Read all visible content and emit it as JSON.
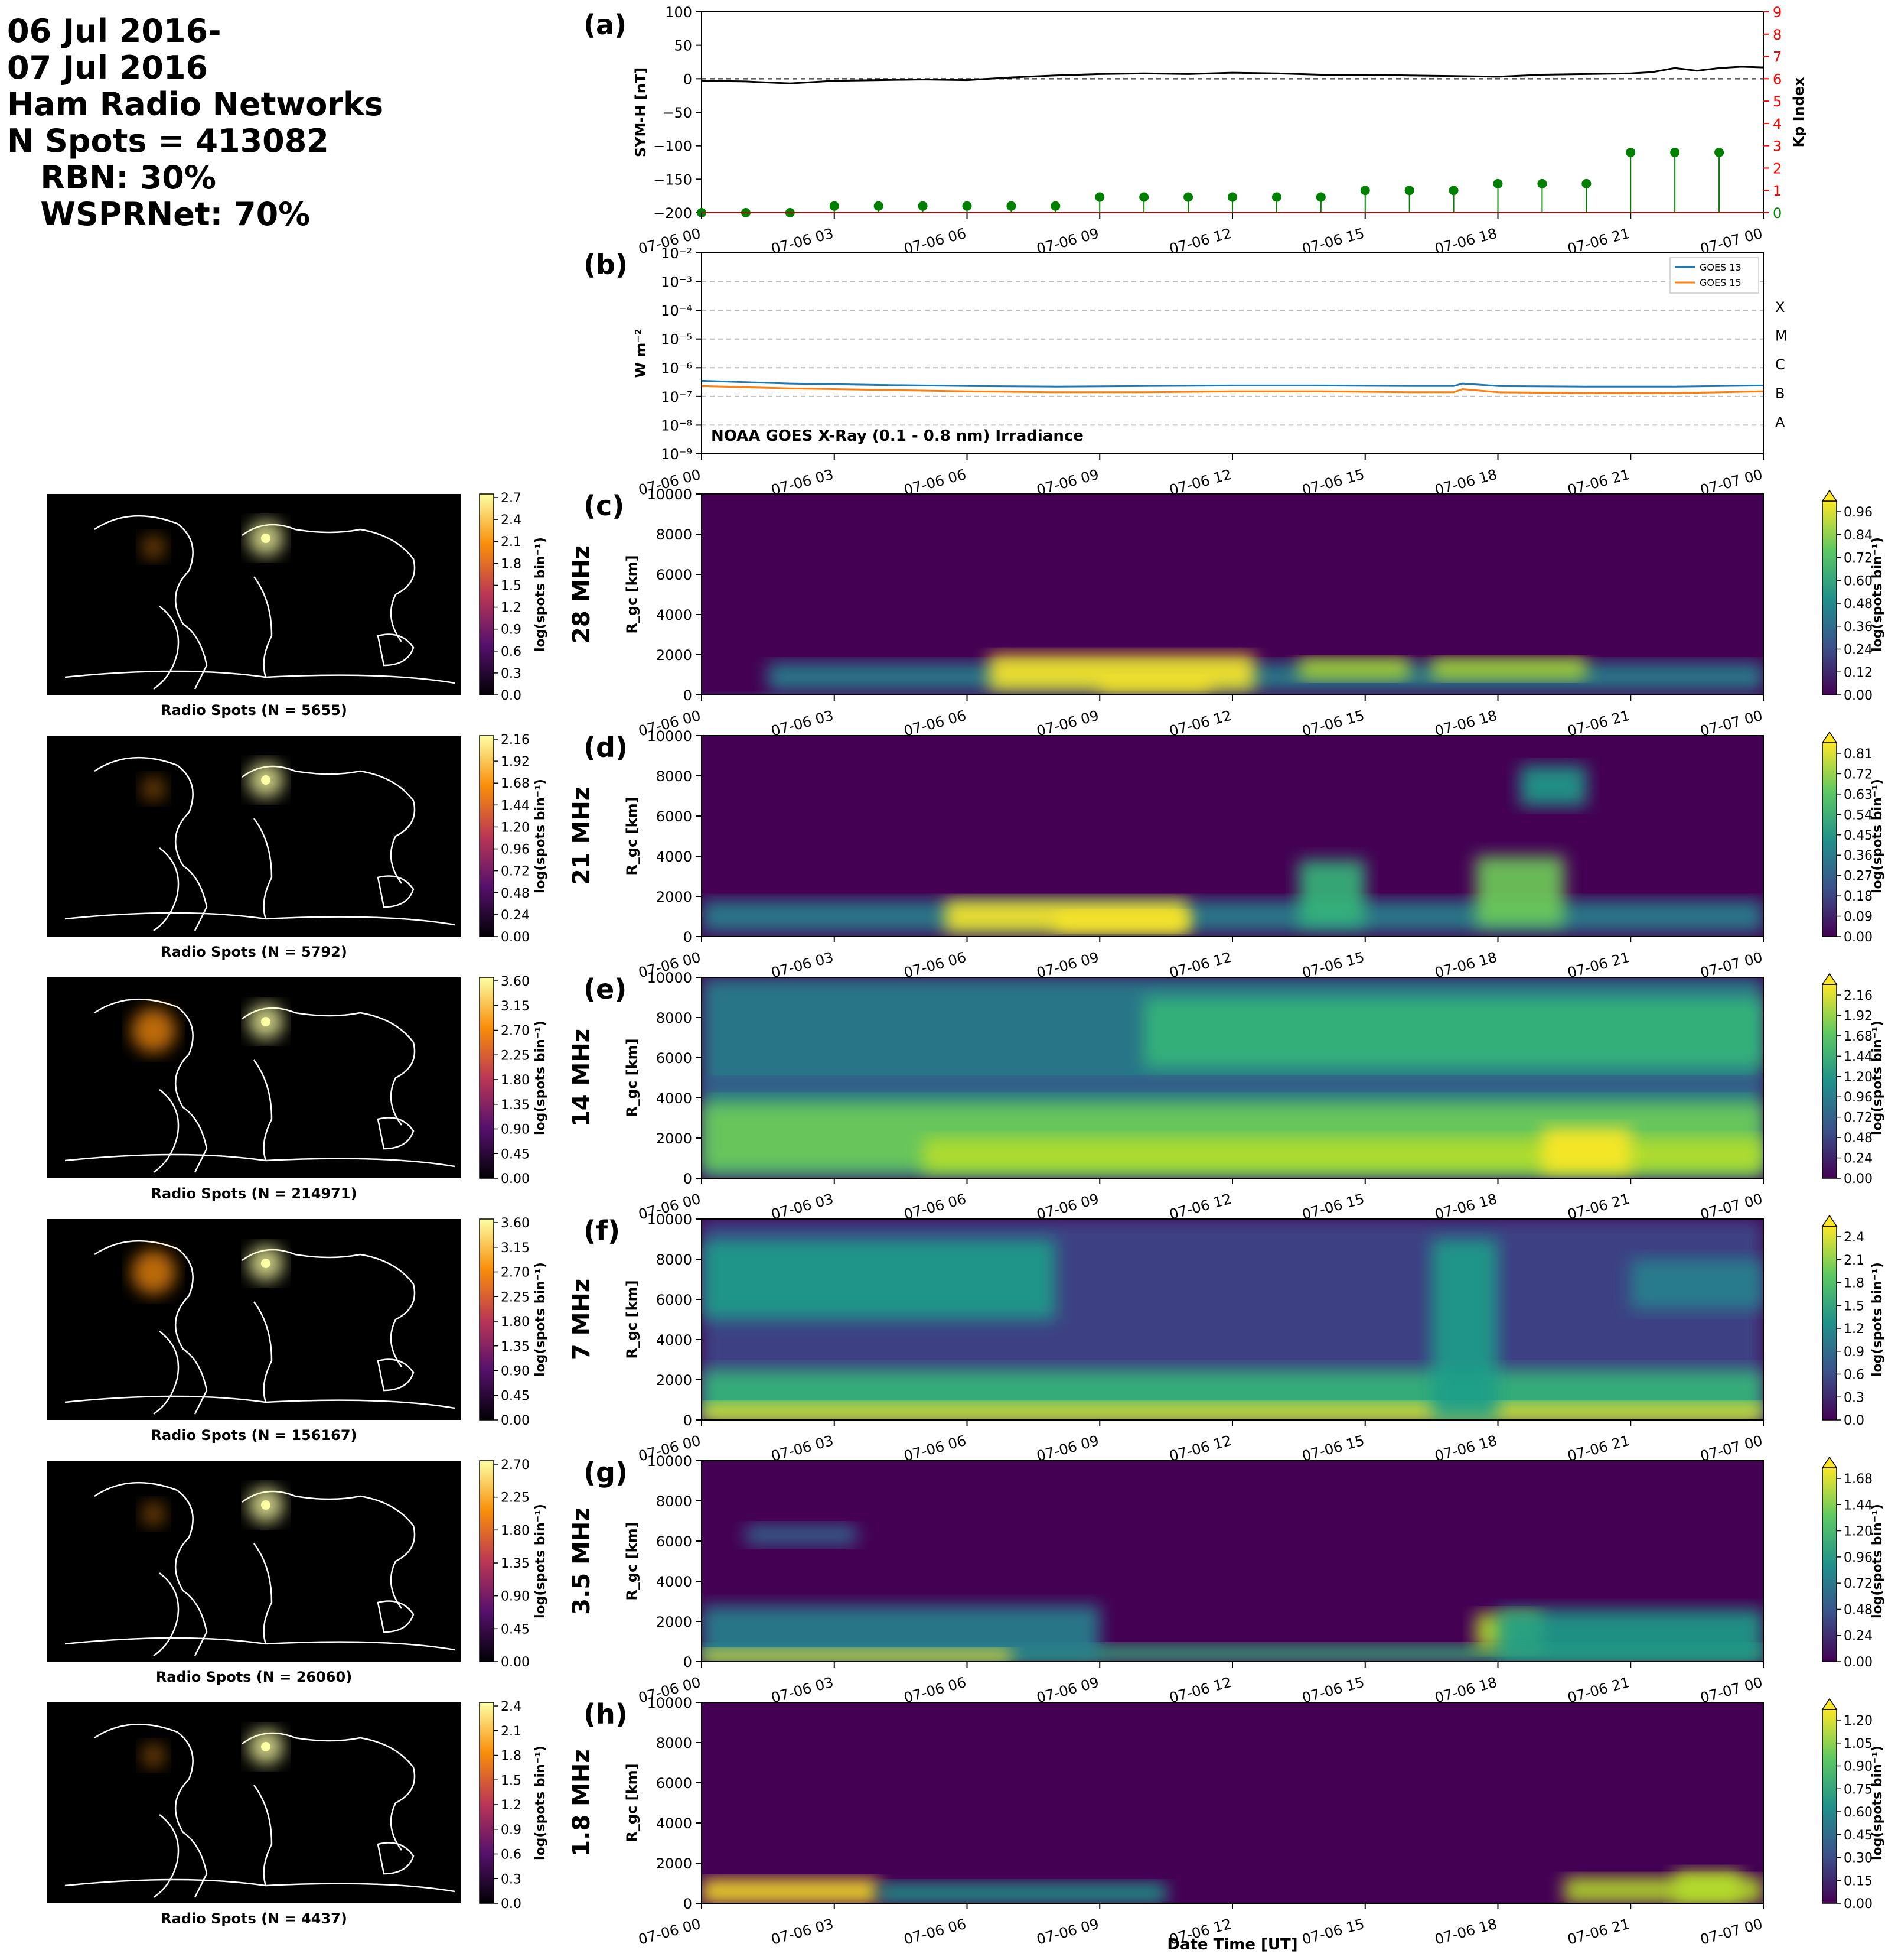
{
  "header": {
    "lines": [
      "06 Jul 2016-",
      "07 Jul 2016",
      "Ham Radio Networks",
      "N Spots = 413082",
      "   RBN: 30%",
      "   WSPRNet: 70%"
    ]
  },
  "time_ticks": [
    "07-06 00",
    "07-06 03",
    "07-06 06",
    "07-06 09",
    "07-06 12",
    "07-06 15",
    "07-06 18",
    "07-06 21",
    "07-07 00"
  ],
  "colors": {
    "symh": "#000000",
    "kp": "#008000",
    "kp_axis": "#ff0000",
    "goes13": "#1f77b4",
    "goes15": "#ff7f0e",
    "map_bg": "#000000",
    "coast": "#ffffff"
  },
  "chart_data": [
    {
      "type": "line",
      "panel": "(a)",
      "x_range_hours": [
        0,
        24
      ],
      "ylabel": "SYM-H [nT]",
      "ylim": [
        -200,
        100
      ],
      "yticks": [
        "100",
        "50",
        "0",
        "−50",
        "−100",
        "−150",
        "−200"
      ],
      "y2label": "Kp Index",
      "y2lim": [
        0,
        9
      ],
      "y2ticks": [
        "9",
        "8",
        "7",
        "6",
        "5",
        "4",
        "3",
        "2",
        "1",
        "0"
      ],
      "series": [
        {
          "kind": "line",
          "x_hours": [
            0,
            1,
            2,
            3,
            4,
            5,
            6,
            7,
            8,
            9,
            10,
            11,
            12,
            13,
            14,
            15,
            16,
            17,
            18,
            19,
            20,
            21,
            21.5,
            22,
            22.5,
            23,
            23.5,
            24
          ],
          "values": [
            -3,
            -4,
            -7,
            -3,
            -2,
            -1,
            -2,
            2,
            5,
            7,
            8,
            7,
            9,
            8,
            6,
            6,
            5,
            4,
            3,
            6,
            7,
            8,
            10,
            16,
            12,
            16,
            18,
            17
          ]
        },
        {
          "kind": "stem",
          "x_hours": [
            0,
            1,
            2,
            3,
            4,
            5,
            6,
            7,
            8,
            9,
            10,
            11,
            12,
            13,
            14,
            15,
            16,
            17,
            18,
            19,
            20,
            21,
            22,
            23
          ],
          "values": [
            0,
            0,
            0,
            0.3,
            0.3,
            0.3,
            0.3,
            0.3,
            0.3,
            0.7,
            0.7,
            0.7,
            0.7,
            0.7,
            0.7,
            1,
            1,
            1,
            1.3,
            1.3,
            1.3,
            2.7,
            2.7,
            2.7
          ]
        }
      ]
    },
    {
      "type": "line",
      "panel": "(b)",
      "x_range_hours": [
        0,
        24
      ],
      "ylabel": "W m⁻²",
      "log_scale": true,
      "ylim": [
        1e-09,
        0.01
      ],
      "yticks": [
        "10⁻²",
        "10⁻³",
        "10⁻⁴",
        "10⁻⁵",
        "10⁻⁶",
        "10⁻⁷",
        "10⁻⁸",
        "10⁻⁹"
      ],
      "flare_classes": [
        "X",
        "M",
        "C",
        "B",
        "A"
      ],
      "annotation": "NOAA GOES X-Ray (0.1 - 0.8 nm) Irradiance",
      "grid": true,
      "legend_position": "top-right",
      "series": [
        {
          "name": "GOES 13",
          "x_hours": [
            0,
            2,
            4,
            6,
            8,
            10,
            12,
            14,
            16,
            17,
            17.2,
            18,
            20,
            22,
            24
          ],
          "values": [
            3.5e-07,
            2.8e-07,
            2.5e-07,
            2.3e-07,
            2.2e-07,
            2.3e-07,
            2.4e-07,
            2.4e-07,
            2.3e-07,
            2.3e-07,
            2.8e-07,
            2.3e-07,
            2.2e-07,
            2.2e-07,
            2.4e-07
          ]
        },
        {
          "name": "GOES 15",
          "x_hours": [
            0,
            2,
            4,
            6,
            8,
            10,
            12,
            14,
            16,
            17,
            17.2,
            18,
            20,
            22,
            24
          ],
          "values": [
            2.3e-07,
            1.9e-07,
            1.7e-07,
            1.5e-07,
            1.4e-07,
            1.4e-07,
            1.5e-07,
            1.5e-07,
            1.4e-07,
            1.4e-07,
            1.8e-07,
            1.4e-07,
            1.3e-07,
            1.3e-07,
            1.5e-07
          ]
        }
      ]
    },
    {
      "type": "heatmap",
      "panel": "(c)",
      "band": "28 MHz",
      "ylabel": "R_gc [km]",
      "ylim": [
        0,
        10000
      ],
      "yticks": [
        "10000",
        "8000",
        "6000",
        "4000",
        "2000",
        "0"
      ],
      "cbar_label": "log(spots bin⁻¹)",
      "cbar_ticks": [
        "0.96",
        "0.84",
        "0.72",
        "0.60",
        "0.48",
        "0.36",
        "0.24",
        "0.12",
        "0.00"
      ],
      "cbar_max": 0.96,
      "map": {
        "title": "Radio Spots (N = 5655)",
        "cbar_ticks": [
          "2.7",
          "2.4",
          "2.1",
          "1.8",
          "1.5",
          "1.2",
          "0.9",
          "0.6",
          "0.3",
          "0.0"
        ]
      },
      "blobs": [
        {
          "t0": 1.5,
          "t1": 24,
          "r0": 200,
          "r1": 1600,
          "v": 0.45
        },
        {
          "t0": 6.5,
          "t1": 12.5,
          "r0": 200,
          "r1": 2000,
          "v": 0.95
        },
        {
          "t0": 9,
          "t1": 11.5,
          "r0": 200,
          "r1": 900,
          "v": 0.96
        },
        {
          "t0": 13.5,
          "t1": 16,
          "r0": 800,
          "r1": 1800,
          "v": 0.8
        },
        {
          "t0": 16.5,
          "t1": 20,
          "r0": 800,
          "r1": 1800,
          "v": 0.85
        },
        {
          "t0": 0,
          "t1": 24,
          "r0": 0,
          "r1": 150,
          "v": 0.3
        }
      ]
    },
    {
      "type": "heatmap",
      "panel": "(d)",
      "band": "21 MHz",
      "ylabel": "R_gc [km]",
      "ylim": [
        0,
        10000
      ],
      "yticks": [
        "10000",
        "8000",
        "6000",
        "4000",
        "2000",
        "0"
      ],
      "cbar_label": "log(spots bin⁻¹)",
      "cbar_ticks": [
        "0.81",
        "0.72",
        "0.63",
        "0.54",
        "0.45",
        "0.36",
        "0.27",
        "0.18",
        "0.09",
        "0.00"
      ],
      "cbar_max": 0.81,
      "map": {
        "title": "Radio Spots (N = 5792)",
        "cbar_ticks": [
          "2.16",
          "1.92",
          "1.68",
          "1.44",
          "1.20",
          "0.96",
          "0.72",
          "0.48",
          "0.24",
          "0.00"
        ]
      },
      "blobs": [
        {
          "t0": 0,
          "t1": 24,
          "r0": 200,
          "r1": 1800,
          "v": 0.4
        },
        {
          "t0": 5.5,
          "t1": 11,
          "r0": 200,
          "r1": 1800,
          "v": 0.8
        },
        {
          "t0": 8,
          "t1": 11,
          "r0": 300,
          "r1": 1200,
          "v": 0.81
        },
        {
          "t0": 13.5,
          "t1": 15,
          "r0": 500,
          "r1": 3800,
          "v": 0.5
        },
        {
          "t0": 17.5,
          "t1": 19.5,
          "r0": 500,
          "r1": 4000,
          "v": 0.6
        },
        {
          "t0": 18.5,
          "t1": 20,
          "r0": 6500,
          "r1": 8500,
          "v": 0.45
        }
      ]
    },
    {
      "type": "heatmap",
      "panel": "(e)",
      "band": "14 MHz",
      "ylabel": "R_gc [km]",
      "ylim": [
        0,
        10000
      ],
      "yticks": [
        "10000",
        "8000",
        "6000",
        "4000",
        "2000",
        "0"
      ],
      "cbar_label": "log(spots bin⁻¹)",
      "cbar_ticks": [
        "2.16",
        "1.92",
        "1.68",
        "1.44",
        "1.20",
        "0.96",
        "0.72",
        "0.48",
        "0.24",
        "0.00"
      ],
      "cbar_max": 2.2,
      "map": {
        "title": "Radio Spots (N = 214971)",
        "cbar_ticks": [
          "3.60",
          "3.15",
          "2.70",
          "2.25",
          "1.80",
          "1.35",
          "0.90",
          "0.45",
          "0.00"
        ]
      },
      "blobs": [
        {
          "t0": 0,
          "t1": 24,
          "r0": 0,
          "r1": 10000,
          "v": 0.9
        },
        {
          "t0": 0,
          "t1": 24,
          "r0": 300,
          "r1": 3800,
          "v": 1.6
        },
        {
          "t0": 5,
          "t1": 24,
          "r0": 300,
          "r1": 2000,
          "v": 1.9
        },
        {
          "t0": 10,
          "t1": 24,
          "r0": 5500,
          "r1": 9000,
          "v": 1.4
        },
        {
          "t0": 19,
          "t1": 21,
          "r0": 300,
          "r1": 2500,
          "v": 2.2
        },
        {
          "t0": 0,
          "t1": 24,
          "r0": 4400,
          "r1": 5000,
          "v": 0.5
        }
      ]
    },
    {
      "type": "heatmap",
      "panel": "(f)",
      "band": "7 MHz",
      "ylabel": "R_gc [km]",
      "ylim": [
        0,
        10000
      ],
      "yticks": [
        "10000",
        "8000",
        "6000",
        "4000",
        "2000",
        "0"
      ],
      "cbar_label": "log(spots bin⁻¹)",
      "cbar_ticks": [
        "2.4",
        "2.1",
        "1.8",
        "1.5",
        "1.2",
        "0.9",
        "0.6",
        "0.3",
        "0.0"
      ],
      "cbar_max": 2.4,
      "map": {
        "title": "Radio Spots (N = 156167)",
        "cbar_ticks": [
          "3.60",
          "3.15",
          "2.70",
          "2.25",
          "1.80",
          "1.35",
          "0.90",
          "0.45",
          "0.00"
        ]
      },
      "blobs": [
        {
          "t0": 0,
          "t1": 24,
          "r0": 0,
          "r1": 10000,
          "v": 0.5
        },
        {
          "t0": 0,
          "t1": 24,
          "r0": 0,
          "r1": 2500,
          "v": 1.5
        },
        {
          "t0": 0,
          "t1": 24,
          "r0": 0,
          "r1": 800,
          "v": 2.3
        },
        {
          "t0": 0,
          "t1": 8,
          "r0": 5000,
          "r1": 9000,
          "v": 1.2
        },
        {
          "t0": 16.5,
          "t1": 18,
          "r0": 0,
          "r1": 9000,
          "v": 1.4
        },
        {
          "t0": 21,
          "t1": 24,
          "r0": 5500,
          "r1": 8000,
          "v": 1.0
        }
      ]
    },
    {
      "type": "heatmap",
      "panel": "(g)",
      "band": "3.5 MHz",
      "ylabel": "R_gc [km]",
      "ylim": [
        0,
        10000
      ],
      "yticks": [
        "10000",
        "8000",
        "6000",
        "4000",
        "2000",
        "0"
      ],
      "cbar_label": "log(spots bin⁻¹)",
      "cbar_ticks": [
        "1.68",
        "1.44",
        "1.20",
        "0.96",
        "0.72",
        "0.48",
        "0.24",
        "0.00"
      ],
      "cbar_max": 1.7,
      "map": {
        "title": "Radio Spots (N = 26060)",
        "cbar_ticks": [
          "2.70",
          "2.25",
          "1.80",
          "1.35",
          "0.90",
          "0.45",
          "0.00"
        ]
      },
      "blobs": [
        {
          "t0": 0,
          "t1": 24,
          "r0": 0,
          "r1": 800,
          "v": 1.1
        },
        {
          "t0": 0,
          "t1": 9,
          "r0": 0,
          "r1": 2800,
          "v": 0.7
        },
        {
          "t0": 0,
          "t1": 7,
          "r0": 0,
          "r1": 600,
          "v": 1.7
        },
        {
          "t0": 1,
          "t1": 3.5,
          "r0": 5800,
          "r1": 6800,
          "v": 0.6
        },
        {
          "t0": 17.5,
          "t1": 19,
          "r0": 600,
          "r1": 2400,
          "v": 1.6
        },
        {
          "t0": 18,
          "t1": 24,
          "r0": 0,
          "r1": 2600,
          "v": 0.9
        }
      ]
    },
    {
      "type": "heatmap",
      "panel": "(h)",
      "band": "1.8 MHz",
      "ylabel": "R_gc [km]",
      "ylim": [
        0,
        10000
      ],
      "yticks": [
        "10000",
        "8000",
        "6000",
        "4000",
        "2000",
        "0"
      ],
      "cbar_label": "log(spots bin⁻¹)",
      "cbar_ticks": [
        "1.20",
        "1.05",
        "0.90",
        "0.75",
        "0.60",
        "0.45",
        "0.30",
        "0.15",
        "0.00"
      ],
      "cbar_max": 1.2,
      "map": {
        "title": "Radio Spots (N = 4437)",
        "cbar_ticks": [
          "2.4",
          "2.1",
          "1.8",
          "1.5",
          "1.2",
          "0.9",
          "0.6",
          "0.3",
          "0.0"
        ]
      },
      "xlabel": "Date Time [UT]",
      "blobs": [
        {
          "t0": 0,
          "t1": 4,
          "r0": 0,
          "r1": 1200,
          "v": 1.2
        },
        {
          "t0": 4,
          "t1": 10.5,
          "r0": 0,
          "r1": 1000,
          "v": 0.6
        },
        {
          "t0": 19.5,
          "t1": 24,
          "r0": 0,
          "r1": 1300,
          "v": 1.1
        },
        {
          "t0": 22,
          "t1": 23.5,
          "r0": 0,
          "r1": 1600,
          "v": 1.0
        }
      ]
    }
  ]
}
